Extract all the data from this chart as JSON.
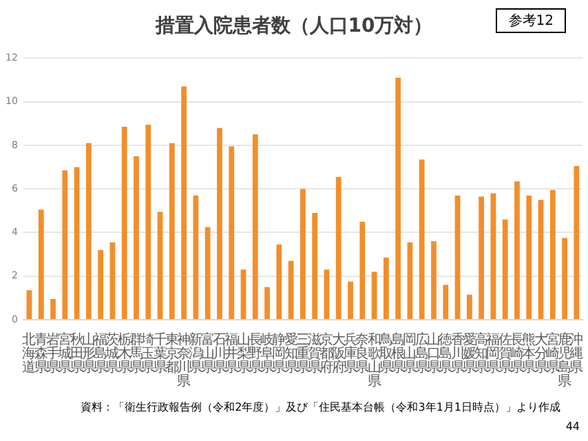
{
  "chart_data": {
    "type": "bar",
    "title": "措置入院患者数（人口10万対）",
    "categories": [
      "北海道",
      "青森県",
      "岩手県",
      "宮城県",
      "秋田県",
      "山形県",
      "福島県",
      "茨城県",
      "栃木県",
      "群馬県",
      "埼玉県",
      "千葉県",
      "東京都",
      "神奈川県",
      "新潟県",
      "富山県",
      "石川県",
      "福井県",
      "山梨県",
      "長野県",
      "岐阜県",
      "静岡県",
      "愛知県",
      "三重県",
      "滋賀県",
      "京都府",
      "大阪府",
      "兵庫県",
      "奈良県",
      "和歌山県",
      "鳥取県",
      "島根県",
      "岡山県",
      "広島県",
      "山口県",
      "徳島県",
      "香川県",
      "愛媛県",
      "高知県",
      "福岡県",
      "佐賀県",
      "長崎県",
      "熊本県",
      "大分県",
      "宮崎県",
      "鹿児島県",
      "沖縄県"
    ],
    "values": [
      1.35,
      5.05,
      0.95,
      6.85,
      7.0,
      8.1,
      3.2,
      3.55,
      8.85,
      7.5,
      8.95,
      4.95,
      8.1,
      10.7,
      5.7,
      4.25,
      8.8,
      7.95,
      2.3,
      8.5,
      1.5,
      3.45,
      2.7,
      6.0,
      4.9,
      2.3,
      6.55,
      1.75,
      4.5,
      2.2,
      2.85,
      11.1,
      3.55,
      7.35,
      3.6,
      1.6,
      5.7,
      1.15,
      5.65,
      5.8,
      4.6,
      6.35,
      5.7,
      5.5,
      5.95,
      3.75,
      7.05
    ],
    "color": "#f28e2b",
    "ylim": [
      0,
      12
    ],
    "yticks": [
      0,
      2,
      4,
      6,
      8,
      10,
      12
    ],
    "grid": "y",
    "annotations": [
      "参考12",
      "資料：「衛生行政報告例（令和2年度）」及び「住民基本台帳（令和3年1月1日時点）」より作成",
      "44"
    ]
  }
}
